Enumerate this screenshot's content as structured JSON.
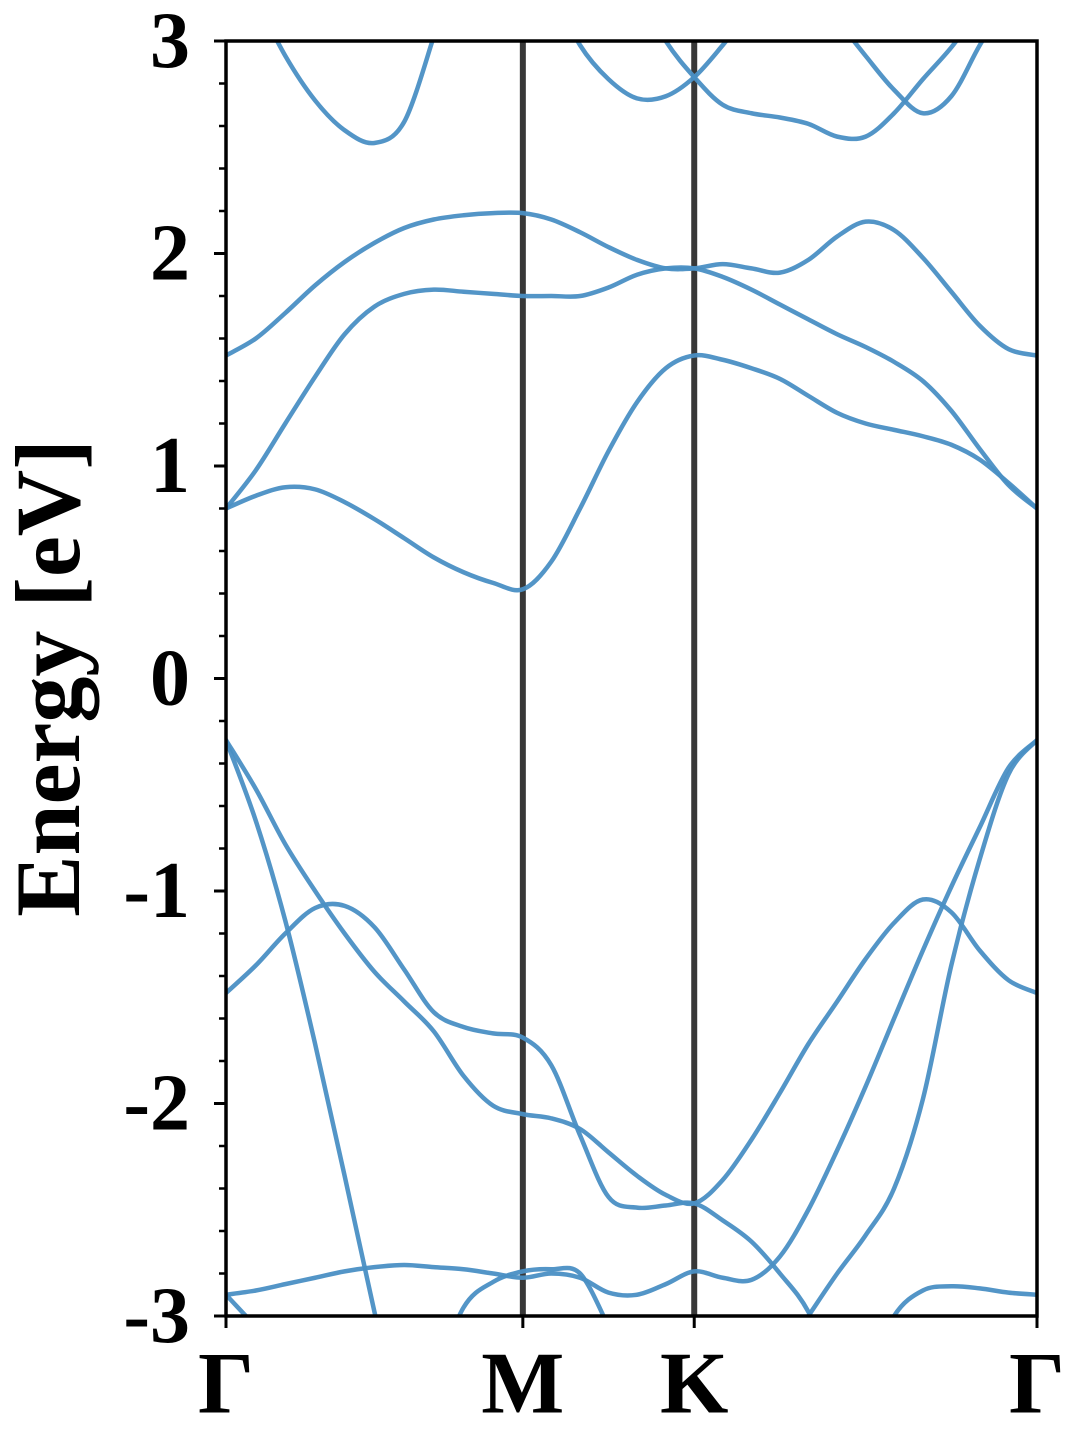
{
  "chart_data": {
    "type": "line",
    "ylabel": "Energy [eV]",
    "x": [
      0,
      0.087,
      0.173,
      0.26,
      0.346,
      0.433,
      0.52,
      0.606,
      0.693,
      0.779,
      0.866,
      0.949,
      1.033,
      1.116,
      1.199,
      1.283,
      1.366,
      1.449,
      1.533,
      1.616,
      1.699,
      1.783,
      1.866,
      1.949,
      2.033,
      2.116,
      2.199,
      2.283,
      2.366
    ],
    "xlim": [
      0,
      2.366
    ],
    "xticks": [
      {
        "value": 0,
        "label": "Γ"
      },
      {
        "value": 0.866,
        "label": "M"
      },
      {
        "value": 1.366,
        "label": "K"
      },
      {
        "value": 2.366,
        "label": "Γ"
      }
    ],
    "ylim": [
      -3,
      3
    ],
    "yticks": [
      -3,
      -2,
      -1,
      0,
      1,
      2,
      3
    ],
    "yminorticks": [
      -2.8,
      -2.6,
      -2.4,
      -2.2,
      -1.8,
      -1.6,
      -1.4,
      -1.2,
      -0.8,
      -0.6,
      -0.4,
      -0.2,
      0.2,
      0.4,
      0.6,
      0.8,
      1.2,
      1.4,
      1.6,
      1.8,
      2.2,
      2.4,
      2.6,
      2.8
    ],
    "vlines": true,
    "grid": false,
    "series": [
      {
        "color": "#4a8fc4",
        "values": [
          0.8,
          0.86,
          0.9,
          0.89,
          0.83,
          0.75,
          0.66,
          0.57,
          0.5,
          0.45,
          0.42,
          0.55,
          0.8,
          1.07,
          1.3,
          1.46,
          1.52,
          1.5,
          1.46,
          1.41,
          1.33,
          1.25,
          1.2,
          1.17,
          1.14,
          1.1,
          1.03,
          0.92,
          0.8
        ]
      },
      {
        "color": "#4a8fc4",
        "values": [
          0.8,
          0.98,
          1.2,
          1.42,
          1.62,
          1.75,
          1.81,
          1.83,
          1.82,
          1.81,
          1.8,
          1.8,
          1.8,
          1.84,
          1.9,
          1.93,
          1.93,
          1.89,
          1.83,
          1.76,
          1.69,
          1.62,
          1.56,
          1.49,
          1.4,
          1.26,
          1.08,
          0.91,
          0.8
        ]
      },
      {
        "color": "#4a8fc4",
        "values": [
          1.52,
          1.6,
          1.72,
          1.85,
          1.96,
          2.05,
          2.12,
          2.16,
          2.18,
          2.19,
          2.19,
          2.16,
          2.1,
          2.03,
          1.97,
          1.93,
          1.93,
          1.95,
          1.93,
          1.91,
          1.97,
          2.08,
          2.15,
          2.11,
          1.98,
          1.82,
          1.66,
          1.55,
          1.52
        ]
      },
      {
        "color": "#4a8fc4",
        "values": [
          null,
          3.2,
          2.93,
          2.72,
          2.58,
          2.52,
          2.62,
          3.02,
          null,
          null,
          null,
          null,
          null,
          null,
          null,
          null,
          null,
          null,
          null,
          null,
          null,
          null,
          null,
          null,
          null,
          null,
          null,
          null,
          null
        ]
      },
      {
        "color": "#4a8fc4",
        "values": [
          null,
          null,
          null,
          null,
          null,
          null,
          null,
          null,
          null,
          null,
          null,
          3.25,
          2.98,
          2.82,
          2.73,
          2.74,
          2.83,
          2.98,
          3.15,
          null,
          null,
          null,
          null,
          null,
          null,
          null,
          null,
          null,
          null
        ]
      },
      {
        "color": "#4a8fc4",
        "values": [
          null,
          null,
          null,
          null,
          null,
          null,
          null,
          null,
          null,
          null,
          null,
          null,
          null,
          null,
          3.25,
          3.0,
          2.83,
          2.7,
          2.66,
          2.64,
          2.61,
          2.55,
          2.55,
          2.66,
          2.82,
          2.97,
          3.15,
          null,
          null
        ]
      },
      {
        "color": "#4a8fc4",
        "values": [
          null,
          null,
          null,
          null,
          null,
          null,
          null,
          null,
          null,
          null,
          null,
          null,
          null,
          null,
          null,
          null,
          null,
          null,
          null,
          null,
          null,
          3.1,
          2.93,
          2.77,
          2.66,
          2.74,
          2.98,
          3.2,
          3.4
        ]
      },
      {
        "color": "#4a8fc4",
        "values": [
          -0.29,
          -0.67,
          -1.14,
          -1.72,
          -2.34,
          -2.98,
          -3.6,
          null,
          null,
          null,
          null,
          null,
          null,
          null,
          null,
          null,
          null,
          null,
          null,
          null,
          null,
          null,
          null,
          null,
          null,
          null,
          null,
          null,
          null
        ]
      },
      {
        "color": "#4a8fc4",
        "values": [
          -0.29,
          -0.52,
          -0.78,
          -1.0,
          -1.2,
          -1.38,
          -1.52,
          -1.66,
          -1.87,
          -2.01,
          -2.05,
          -2.07,
          -2.12,
          -2.23,
          -2.34,
          -2.43,
          -2.47,
          -2.36,
          -2.17,
          -1.95,
          -1.72,
          -1.52,
          -1.32,
          -1.15,
          -1.04,
          -1.1,
          -1.28,
          -1.42,
          -1.48
        ]
      },
      {
        "color": "#4a8fc4",
        "values": [
          -1.48,
          -1.35,
          -1.2,
          -1.08,
          -1.07,
          -1.17,
          -1.37,
          -1.57,
          -1.64,
          -1.67,
          -1.69,
          -1.82,
          -2.15,
          -2.44,
          -2.49,
          -2.48,
          -2.47,
          -2.55,
          -2.65,
          -2.8,
          -2.98,
          -3.3,
          null,
          null,
          null,
          null,
          null,
          null,
          null
        ]
      },
      {
        "color": "#4a8fc4",
        "values": [
          null,
          null,
          null,
          null,
          null,
          null,
          null,
          null,
          null,
          null,
          null,
          null,
          null,
          null,
          null,
          null,
          null,
          null,
          null,
          -3.2,
          -3.0,
          -2.8,
          -2.62,
          -2.4,
          -1.98,
          -1.35,
          -0.85,
          -0.45,
          -0.29
        ]
      },
      {
        "color": "#4a8fc4",
        "values": [
          -2.9,
          -2.88,
          -2.85,
          -2.82,
          -2.79,
          -2.77,
          -2.76,
          -2.77,
          -2.78,
          -2.8,
          -2.82,
          -2.8,
          -2.82,
          -2.89,
          -2.9,
          -2.85,
          -2.79,
          -2.82,
          -2.83,
          -2.72,
          -2.5,
          -2.22,
          -1.92,
          -1.6,
          -1.28,
          -0.98,
          -0.7,
          -0.42,
          -0.29
        ]
      },
      {
        "color": "#4a8fc4",
        "values": [
          null,
          null,
          null,
          null,
          null,
          null,
          null,
          -3.3,
          -2.96,
          -2.84,
          -2.79,
          -2.78,
          -2.8,
          -3.05,
          null,
          null,
          null,
          null,
          null,
          null,
          null,
          null,
          null,
          null,
          null,
          null,
          null,
          null,
          null
        ]
      },
      {
        "color": "#4a8fc4",
        "values": [
          -2.9,
          -3.05,
          null,
          null,
          null,
          null,
          null,
          null,
          null,
          null,
          null,
          null,
          null,
          null,
          null,
          null,
          null,
          null,
          null,
          null,
          null,
          null,
          -3.3,
          -3.0,
          -2.88,
          -2.86,
          -2.87,
          -2.89,
          -2.9
        ]
      }
    ]
  }
}
